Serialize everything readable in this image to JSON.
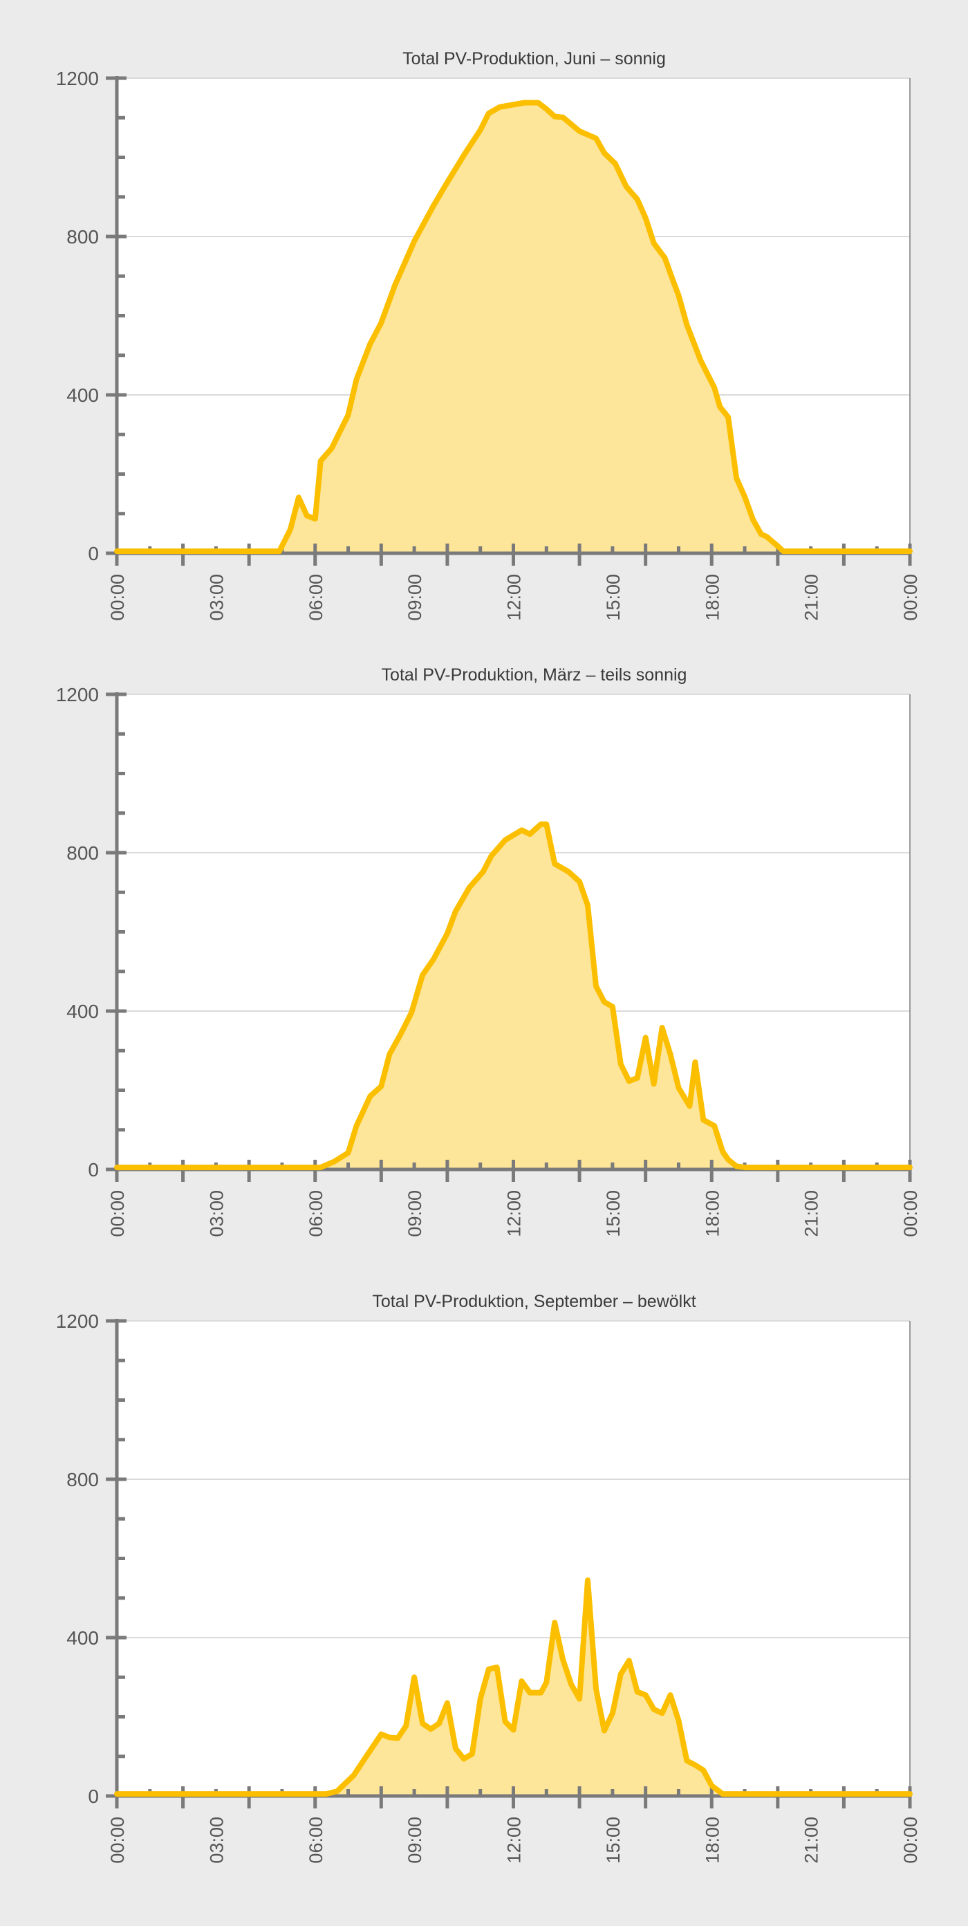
{
  "colors": {
    "background": "#ebebeb",
    "plot": "#ffffff",
    "line": "#fbbf00",
    "fill": "#fde599",
    "axis": "#7a7a7a",
    "grid": "#dadada"
  },
  "chart_data": [
    {
      "type": "area",
      "title": "Total PV-Produktion, Juni – sonnig",
      "xlabel": "",
      "ylabel": "",
      "ylim": [
        0,
        1200
      ],
      "yticks": [
        "0",
        "400",
        "800",
        "1200"
      ],
      "xticks": [
        "00:00",
        "03:00",
        "06:00",
        "09:00",
        "12:00",
        "15:00",
        "18:00",
        "21:00",
        "00:00"
      ],
      "grid": true,
      "points": [
        [
          "00:00",
          5
        ],
        [
          "04:55",
          5
        ],
        [
          "05:15",
          60
        ],
        [
          "05:30",
          141
        ],
        [
          "05:45",
          95
        ],
        [
          "06:00",
          87
        ],
        [
          "06:10",
          233
        ],
        [
          "06:30",
          265
        ],
        [
          "07:00",
          349
        ],
        [
          "07:15",
          439
        ],
        [
          "07:40",
          529
        ],
        [
          "08:00",
          582
        ],
        [
          "08:25",
          677
        ],
        [
          "09:00",
          788
        ],
        [
          "09:35",
          878
        ],
        [
          "10:00",
          937
        ],
        [
          "10:30",
          1005
        ],
        [
          "11:00",
          1069
        ],
        [
          "11:15",
          1111
        ],
        [
          "11:35",
          1127
        ],
        [
          "12:20",
          1138
        ],
        [
          "12:45",
          1138
        ],
        [
          "13:00",
          1122
        ],
        [
          "13:15",
          1103
        ],
        [
          "13:30",
          1101
        ],
        [
          "14:00",
          1066
        ],
        [
          "14:30",
          1048
        ],
        [
          "14:45",
          1011
        ],
        [
          "15:05",
          984
        ],
        [
          "15:25",
          926
        ],
        [
          "15:45",
          894
        ],
        [
          "16:00",
          847
        ],
        [
          "16:15",
          783
        ],
        [
          "16:35",
          746
        ],
        [
          "16:50",
          688
        ],
        [
          "17:00",
          651
        ],
        [
          "17:15",
          577
        ],
        [
          "17:40",
          487
        ],
        [
          "18:05",
          418
        ],
        [
          "18:15",
          370
        ],
        [
          "18:30",
          344
        ],
        [
          "18:45",
          190
        ],
        [
          "19:00",
          143
        ],
        [
          "19:15",
          85
        ],
        [
          "19:30",
          48
        ],
        [
          "19:40",
          42
        ],
        [
          "20:00",
          18
        ],
        [
          "20:10",
          5
        ],
        [
          "24:00",
          5
        ]
      ]
    },
    {
      "type": "area",
      "title": "Total PV-Produktion, März – teils sonnig",
      "xlabel": "",
      "ylabel": "",
      "ylim": [
        0,
        1200
      ],
      "yticks": [
        "0",
        "400",
        "800",
        "1200"
      ],
      "xticks": [
        "00:00",
        "03:00",
        "06:00",
        "09:00",
        "12:00",
        "15:00",
        "18:00",
        "21:00",
        "00:00"
      ],
      "grid": true,
      "points": [
        [
          "00:00",
          5
        ],
        [
          "06:10",
          5
        ],
        [
          "06:35",
          20
        ],
        [
          "07:00",
          42
        ],
        [
          "07:15",
          110
        ],
        [
          "07:40",
          185
        ],
        [
          "08:00",
          210
        ],
        [
          "08:15",
          291
        ],
        [
          "08:35",
          341
        ],
        [
          "08:55",
          396
        ],
        [
          "09:15",
          491
        ],
        [
          "09:35",
          531
        ],
        [
          "10:00",
          596
        ],
        [
          "10:15",
          652
        ],
        [
          "10:40",
          712
        ],
        [
          "11:05",
          752
        ],
        [
          "11:20",
          792
        ],
        [
          "11:45",
          832
        ],
        [
          "12:15",
          857
        ],
        [
          "12:30",
          847
        ],
        [
          "12:50",
          872
        ],
        [
          "13:00",
          872
        ],
        [
          "13:15",
          772
        ],
        [
          "13:40",
          752
        ],
        [
          "14:00",
          727
        ],
        [
          "14:15",
          667
        ],
        [
          "14:30",
          463
        ],
        [
          "14:45",
          423
        ],
        [
          "15:00",
          411
        ],
        [
          "15:15",
          266
        ],
        [
          "15:30",
          223
        ],
        [
          "15:45",
          231
        ],
        [
          "16:00",
          333
        ],
        [
          "16:15",
          216
        ],
        [
          "16:30",
          358
        ],
        [
          "16:45",
          291
        ],
        [
          "17:00",
          206
        ],
        [
          "17:20",
          160
        ],
        [
          "17:30",
          271
        ],
        [
          "17:45",
          125
        ],
        [
          "18:05",
          110
        ],
        [
          "18:20",
          45
        ],
        [
          "18:30",
          25
        ],
        [
          "18:45",
          8
        ],
        [
          "19:00",
          5
        ],
        [
          "24:00",
          5
        ]
      ]
    },
    {
      "type": "area",
      "title": "Total PV-Produktion, September – bewölkt",
      "xlabel": "",
      "ylabel": "",
      "ylim": [
        0,
        1200
      ],
      "yticks": [
        "0",
        "400",
        "800",
        "1200"
      ],
      "xticks": [
        "00:00",
        "03:00",
        "06:00",
        "09:00",
        "12:00",
        "15:00",
        "18:00",
        "21:00",
        "00:00"
      ],
      "grid": true,
      "points": [
        [
          "00:00",
          5
        ],
        [
          "06:20",
          5
        ],
        [
          "06:40",
          12
        ],
        [
          "07:10",
          52
        ],
        [
          "07:30",
          94
        ],
        [
          "08:00",
          156
        ],
        [
          "08:15",
          148
        ],
        [
          "08:30",
          146
        ],
        [
          "08:45",
          177
        ],
        [
          "09:00",
          300
        ],
        [
          "09:15",
          183
        ],
        [
          "09:30",
          169
        ],
        [
          "09:45",
          183
        ],
        [
          "10:00",
          235
        ],
        [
          "10:15",
          120
        ],
        [
          "10:30",
          94
        ],
        [
          "10:45",
          106
        ],
        [
          "11:00",
          245
        ],
        [
          "11:15",
          320
        ],
        [
          "11:30",
          325
        ],
        [
          "11:45",
          188
        ],
        [
          "12:00",
          167
        ],
        [
          "12:15",
          290
        ],
        [
          "12:30",
          261
        ],
        [
          "12:50",
          261
        ],
        [
          "13:00",
          287
        ],
        [
          "13:15",
          438
        ],
        [
          "13:30",
          344
        ],
        [
          "13:45",
          282
        ],
        [
          "14:00",
          245
        ],
        [
          "14:15",
          545
        ],
        [
          "14:30",
          271
        ],
        [
          "14:45",
          165
        ],
        [
          "15:00",
          209
        ],
        [
          "15:15",
          308
        ],
        [
          "15:30",
          342
        ],
        [
          "15:45",
          263
        ],
        [
          "16:00",
          255
        ],
        [
          "16:15",
          219
        ],
        [
          "16:30",
          209
        ],
        [
          "16:45",
          255
        ],
        [
          "17:00",
          190
        ],
        [
          "17:15",
          89
        ],
        [
          "17:30",
          78
        ],
        [
          "17:45",
          65
        ],
        [
          "18:00",
          26
        ],
        [
          "18:20",
          5
        ],
        [
          "24:00",
          5
        ]
      ]
    }
  ]
}
